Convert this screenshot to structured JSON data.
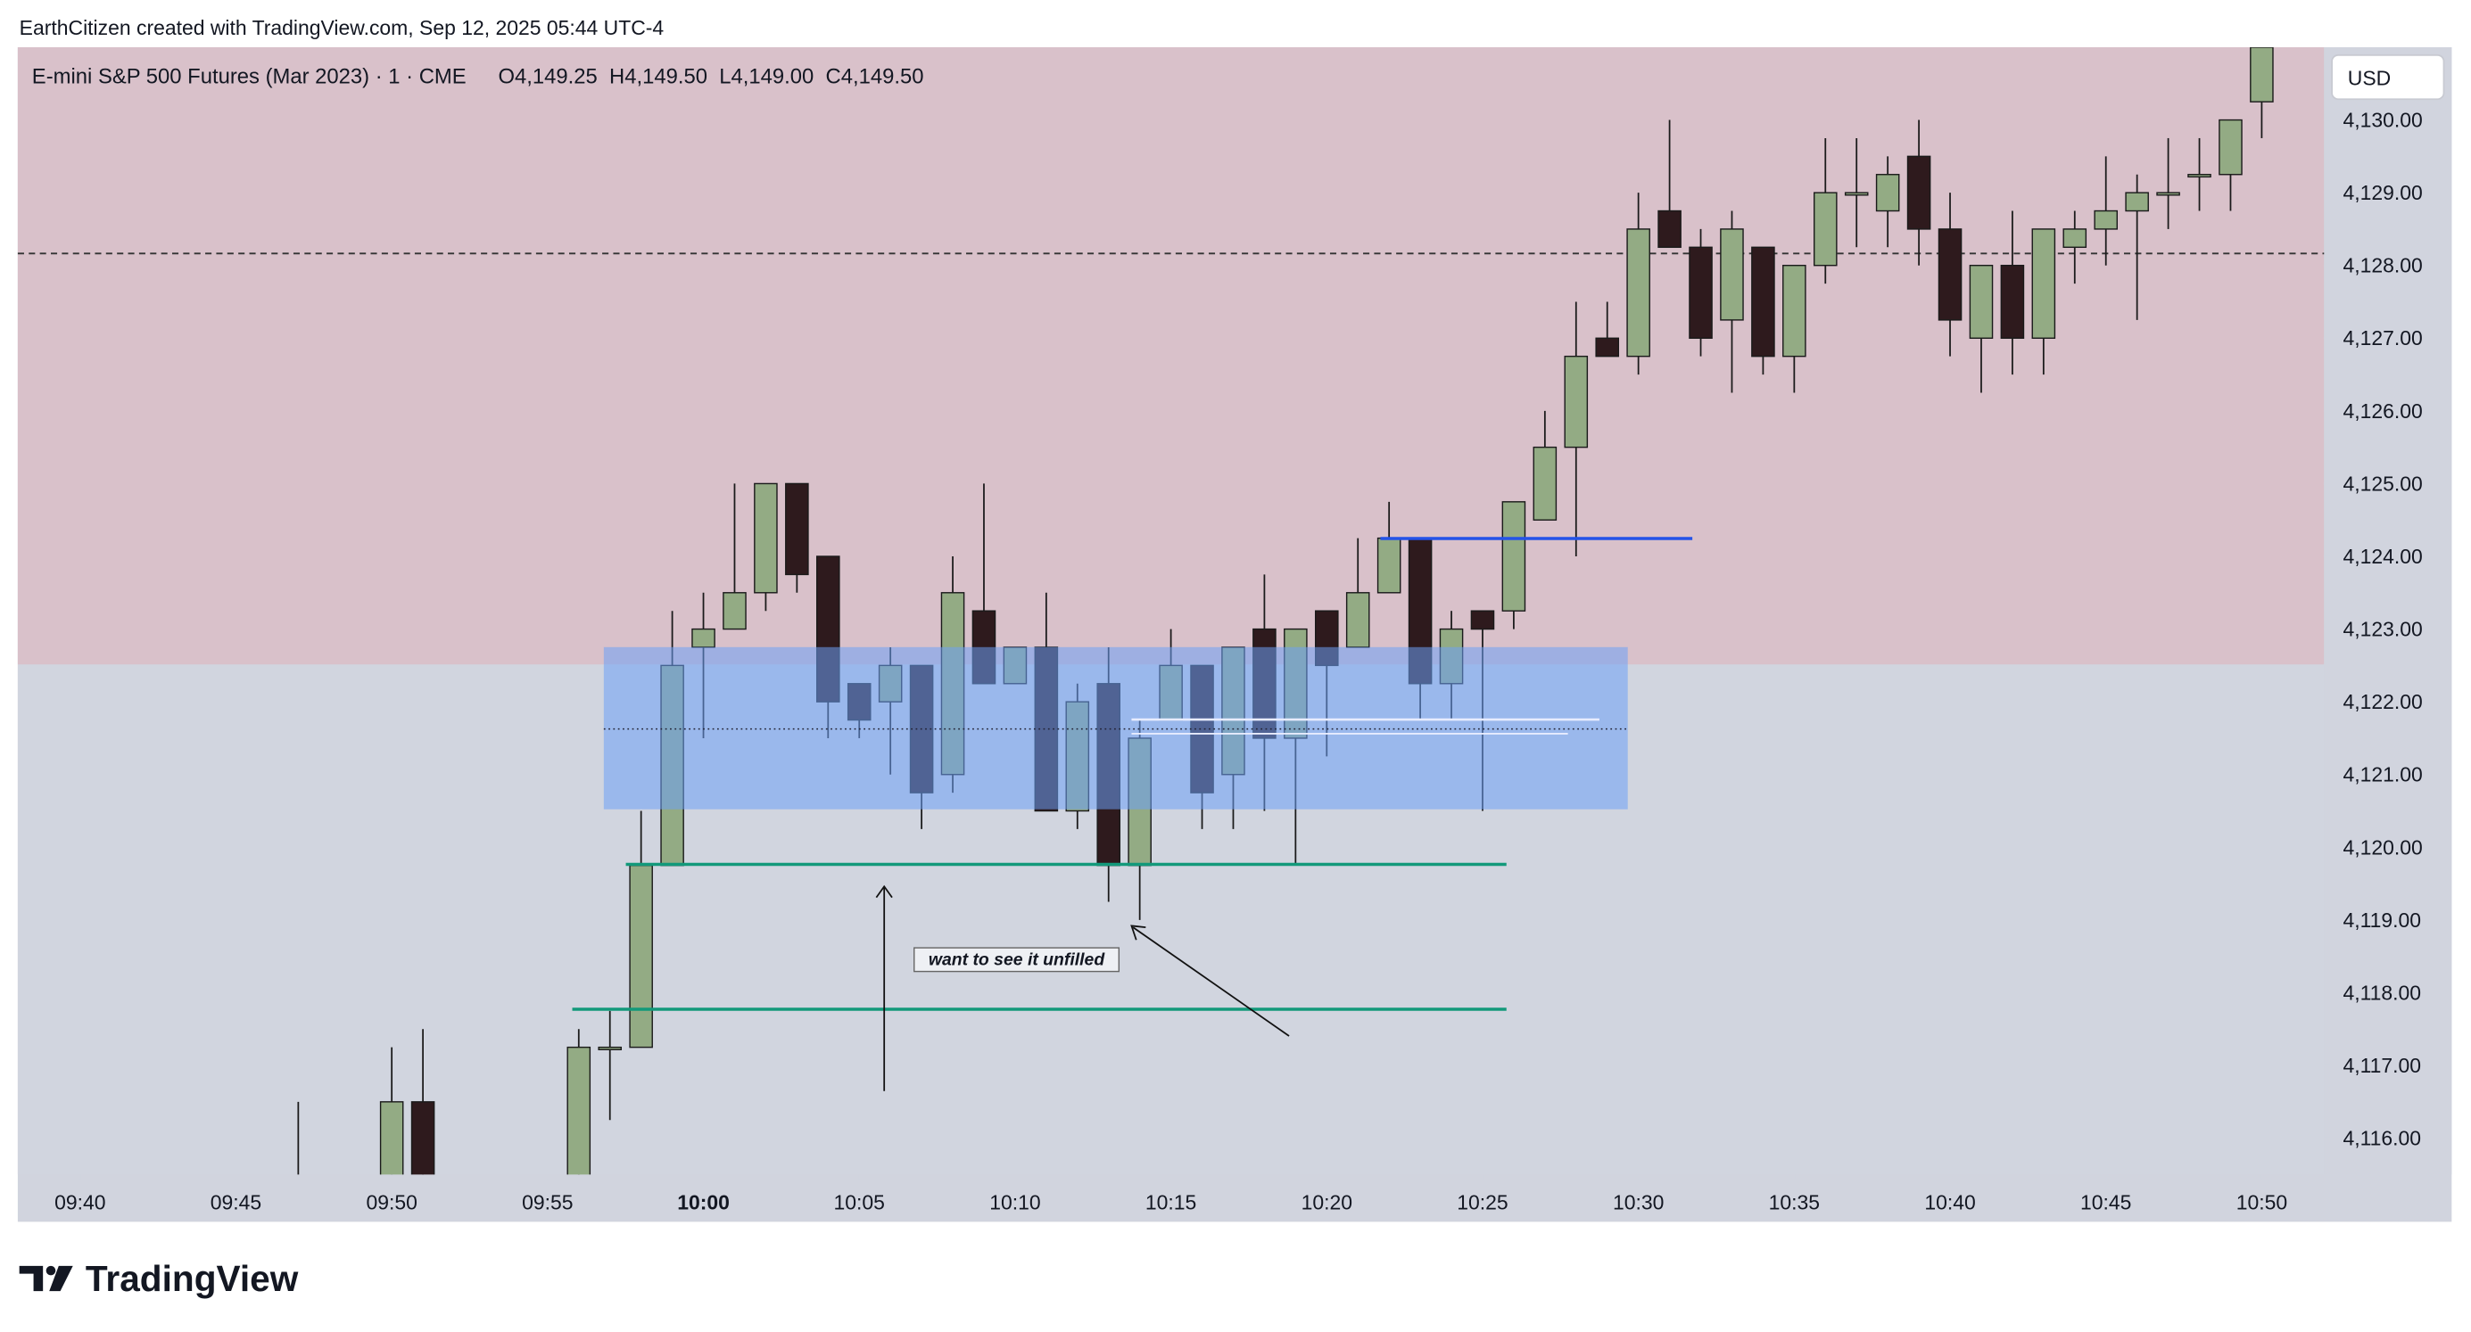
{
  "header": "EarthCitizen created with TradingView.com, Sep 12, 2025 05:44 UTC-4",
  "brand": "TradingView",
  "chart_data": {
    "type": "candlestick",
    "title": "E-mini S&P 500 Futures (Mar 2023) · 1 · CME",
    "ohlc_legend": "O4,149.25  H4,149.50  L4,149.00  C4,149.50",
    "currency": "USD",
    "annotation": "want to see it unfilled",
    "x": [
      "09:47",
      "09:50",
      "09:51",
      "09:56",
      "09:57",
      "09:58",
      "09:59",
      "10:00",
      "10:01",
      "10:02",
      "10:03",
      "10:04",
      "10:05",
      "10:06",
      "10:07",
      "10:08",
      "10:09",
      "10:10",
      "10:11",
      "10:12",
      "10:13",
      "10:14",
      "10:15",
      "10:16",
      "10:17",
      "10:18",
      "10:19",
      "10:20",
      "10:21",
      "10:22",
      "10:23",
      "10:24",
      "10:25",
      "10:26",
      "10:27",
      "10:28",
      "10:29",
      "10:30",
      "10:31",
      "10:32",
      "10:33",
      "10:34",
      "10:35",
      "10:36",
      "10:37",
      "10:38",
      "10:39",
      "10:40",
      "10:41",
      "10:42",
      "10:43",
      "10:44",
      "10:45",
      "10:46",
      "10:47",
      "10:48",
      "10:49",
      "10:50"
    ],
    "open": [
      4115.25,
      4115.25,
      4116.5,
      4115.25,
      4117.25,
      4117.25,
      4119.75,
      4122.75,
      4123,
      4123.5,
      4125,
      4124,
      4122.25,
      4122,
      4122.5,
      4121,
      4123.25,
      4122.25,
      4122.75,
      4120.5,
      4122.25,
      4119.75,
      4121.75,
      4122.5,
      4121,
      4123,
      4121.5,
      4123.25,
      4122.75,
      4123.5,
      4124.25,
      4122.25,
      4123.25,
      4123.25,
      4124.5,
      4125.5,
      4127,
      4126.75,
      4128.75,
      4128.25,
      4127.25,
      4128.25,
      4126.75,
      4128,
      4129,
      4128.75,
      4129.5,
      4128.5,
      4127,
      4128,
      4127,
      4128.25,
      4128.5,
      4128.75,
      4129,
      4129.25,
      4129.25,
      4130.25
    ],
    "high": [
      4116.5,
      4117.25,
      4117.5,
      4117.5,
      4117.75,
      4120.5,
      4123.25,
      4123.5,
      4125,
      4125,
      4125,
      4124,
      4122.25,
      4122.75,
      4122.5,
      4124,
      4125,
      4122.75,
      4123.5,
      4122.25,
      4122.75,
      4121.75,
      4123,
      4122.5,
      4122.75,
      4123.75,
      4123,
      4123.25,
      4124.25,
      4124.75,
      4124.25,
      4123.25,
      4123.25,
      4124.75,
      4126,
      4127.5,
      4127.5,
      4129,
      4130,
      4128.5,
      4128.75,
      4128.25,
      4128,
      4129.75,
      4129.75,
      4129.5,
      4130,
      4129,
      4128,
      4128.75,
      4128.5,
      4128.75,
      4129.5,
      4129.25,
      4129.75,
      4129.75,
      4130,
      4131
    ],
    "low": [
      4115,
      4115,
      4115,
      4115,
      4116.25,
      4117.25,
      4119.75,
      4121.5,
      4123,
      4123.25,
      4123.5,
      4121.5,
      4121.5,
      4121,
      4120.25,
      4120.75,
      4122.25,
      4122.25,
      4120.5,
      4120.25,
      4119.25,
      4119,
      4121.75,
      4120.25,
      4120.25,
      4120.5,
      4119.75,
      4121.25,
      4122.75,
      4123.5,
      4121.75,
      4121.75,
      4120.5,
      4123,
      4124.5,
      4124,
      4126.75,
      4126.5,
      4128.25,
      4126.75,
      4126.25,
      4126.5,
      4126.25,
      4127.75,
      4128.25,
      4128.25,
      4128,
      4126.75,
      4126.25,
      4126.5,
      4126.5,
      4127.75,
      4128,
      4127.25,
      4128.5,
      4128.75,
      4128.75,
      4129.75
    ],
    "close": [
      4115.25,
      4116.5,
      4115.25,
      4117.25,
      4117.25,
      4119.75,
      4122.5,
      4123,
      4123.5,
      4125,
      4123.75,
      4122,
      4121.75,
      4122.5,
      4120.75,
      4123.5,
      4122.25,
      4122.75,
      4120.5,
      4122,
      4119.75,
      4121.5,
      4122.5,
      4120.75,
      4122.75,
      4121.5,
      4123,
      4122.5,
      4123.5,
      4124.25,
      4122.25,
      4123,
      4123,
      4124.75,
      4125.5,
      4126.75,
      4126.75,
      4128.5,
      4128.25,
      4127,
      4128.5,
      4126.75,
      4128,
      4129,
      4129,
      4129.25,
      4128.5,
      4127.25,
      4128,
      4127,
      4128.5,
      4128.5,
      4128.75,
      4129,
      4129,
      4129.25,
      4130,
      4131
    ],
    "up_color": "#93ab84",
    "down_color": "#2e1a1d",
    "xlim": [
      "09:38",
      "10:52"
    ],
    "xticks": [
      "09:40",
      "09:45",
      "09:50",
      "09:55",
      "10:00",
      "10:05",
      "10:10",
      "10:15",
      "10:20",
      "10:25",
      "10:30",
      "10:35",
      "10:40",
      "10:45",
      "10:50"
    ],
    "ylim": [
      4115.5,
      4131
    ],
    "yticks": [
      {
        "value": 4116,
        "label": "4,116.00"
      },
      {
        "value": 4117,
        "label": "4,117.00"
      },
      {
        "value": 4118,
        "label": "4,118.00"
      },
      {
        "value": 4119,
        "label": "4,119.00"
      },
      {
        "value": 4120,
        "label": "4,120.00"
      },
      {
        "value": 4121,
        "label": "4,121.00"
      },
      {
        "value": 4122,
        "label": "4,122.00"
      },
      {
        "value": 4123,
        "label": "4,123.00"
      },
      {
        "value": 4124,
        "label": "4,124.00"
      },
      {
        "value": 4125,
        "label": "4,125.00"
      },
      {
        "value": 4126,
        "label": "4,126.00"
      },
      {
        "value": 4127,
        "label": "4,127.00"
      },
      {
        "value": 4128,
        "label": "4,128.00"
      },
      {
        "value": 4129,
        "label": "4,129.00"
      },
      {
        "value": 4130,
        "label": "4,130.00"
      }
    ],
    "grid": false
  }
}
